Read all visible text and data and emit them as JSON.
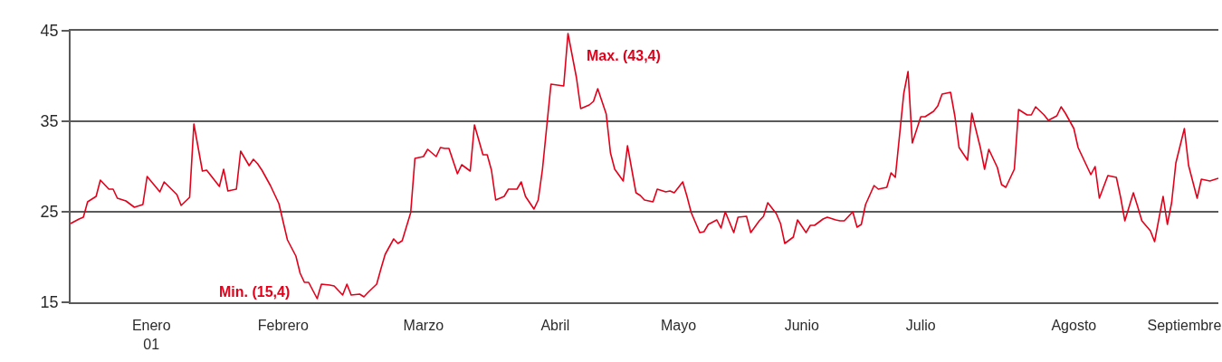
{
  "chart_data": {
    "type": "line",
    "x": [
      "2000-12-27",
      "2000-12-29",
      "2000-12-30",
      "2000-12-31",
      "2001-01-02",
      "2001-01-03",
      "2001-01-05",
      "2001-01-06",
      "2001-01-07",
      "2001-01-09",
      "2001-01-11",
      "2001-01-13",
      "2001-01-14",
      "2001-01-17",
      "2001-01-18",
      "2001-01-21",
      "2001-01-22",
      "2001-01-24",
      "2001-01-25",
      "2001-01-27",
      "2001-01-28",
      "2001-01-29",
      "2001-01-31",
      "2001-02-01",
      "2001-02-02",
      "2001-02-04",
      "2001-02-05",
      "2001-02-07",
      "2001-02-08",
      "2001-02-09",
      "2001-02-10",
      "2001-02-12",
      "2001-02-14",
      "2001-02-15",
      "2001-02-16",
      "2001-02-18",
      "2001-02-19",
      "2001-02-20",
      "2001-02-21",
      "2001-02-23",
      "2001-02-24",
      "2001-02-26",
      "2001-02-27",
      "2001-03-01",
      "2001-03-02",
      "2001-03-03",
      "2001-03-05",
      "2001-03-06",
      "2001-03-07",
      "2001-03-09",
      "2001-03-10",
      "2001-03-11",
      "2001-03-13",
      "2001-03-14",
      "2001-03-15",
      "2001-03-17",
      "2001-03-18",
      "2001-03-20",
      "2001-03-21",
      "2001-03-23",
      "2001-03-24",
      "2001-03-25",
      "2001-03-26",
      "2001-03-28",
      "2001-03-29",
      "2001-03-31",
      "2001-04-01",
      "2001-04-03",
      "2001-04-04",
      "2001-04-05",
      "2001-04-06",
      "2001-04-08",
      "2001-04-09",
      "2001-04-11",
      "2001-04-12",
      "2001-04-13",
      "2001-04-15",
      "2001-04-16",
      "2001-04-17",
      "2001-04-19",
      "2001-04-22",
      "2001-04-23",
      "2001-04-25",
      "2001-04-26",
      "2001-04-28",
      "2001-04-29",
      "2001-04-30",
      "2001-05-02",
      "2001-05-03",
      "2001-05-04",
      "2001-05-06",
      "2001-05-07",
      "2001-05-09",
      "2001-05-10",
      "2001-05-11",
      "2001-05-13",
      "2001-05-14",
      "2001-05-16",
      "2001-05-17",
      "2001-05-18",
      "2001-05-20",
      "2001-05-21",
      "2001-05-22",
      "2001-05-24",
      "2001-05-25",
      "2001-05-26",
      "2001-05-28",
      "2001-05-29",
      "2001-05-30",
      "2001-06-01",
      "2001-06-02",
      "2001-06-04",
      "2001-06-05",
      "2001-06-07",
      "2001-06-08",
      "2001-06-09",
      "2001-06-11",
      "2001-06-12",
      "2001-06-13",
      "2001-06-15",
      "2001-06-16",
      "2001-06-18",
      "2001-06-19",
      "2001-06-20",
      "2001-06-22",
      "2001-06-23",
      "2001-06-25",
      "2001-06-26",
      "2001-06-27",
      "2001-06-29",
      "2001-06-30",
      "2001-07-01",
      "2001-07-02",
      "2001-07-04",
      "2001-07-05",
      "2001-07-07",
      "2001-07-08",
      "2001-07-09",
      "2001-07-11",
      "2001-07-12",
      "2001-07-13",
      "2001-07-15",
      "2001-07-16",
      "2001-07-18",
      "2001-07-19",
      "2001-07-20",
      "2001-07-22",
      "2001-07-23",
      "2001-07-24",
      "2001-07-26",
      "2001-07-27",
      "2001-07-29",
      "2001-07-30",
      "2001-07-31",
      "2001-08-02",
      "2001-08-03",
      "2001-08-04",
      "2001-08-06",
      "2001-08-07",
      "2001-08-09",
      "2001-08-10",
      "2001-08-11",
      "2001-08-13",
      "2001-08-14",
      "2001-08-16",
      "2001-08-17",
      "2001-08-18",
      "2001-08-20",
      "2001-08-21",
      "2001-08-22",
      "2001-08-24",
      "2001-08-25",
      "2001-08-26",
      "2001-08-28",
      "2001-08-30",
      "2001-08-31",
      "2001-09-01",
      "2001-09-03",
      "2001-09-04",
      "2001-09-05",
      "2001-09-07",
      "2001-09-08",
      "2001-09-10",
      "2001-09-11",
      "2001-09-12",
      "2001-09-13",
      "2001-09-15",
      "2001-09-16",
      "2001-09-18",
      "2001-09-19",
      "2001-09-21",
      "2001-09-23"
    ],
    "series": [
      {
        "color": "#e2001a",
        "values": [
          23.7,
          24.2,
          24.4,
          26.1,
          26.7,
          28.5,
          27.5,
          27.5,
          26.5,
          26.2,
          25.5,
          25.8,
          28.9,
          27.2,
          28.3,
          26.9,
          25.7,
          26.6,
          34.7,
          29.5,
          29.6,
          29.0,
          27.8,
          29.7,
          27.3,
          27.5,
          31.7,
          30.1,
          30.8,
          30.3,
          29.6,
          27.9,
          25.9,
          23.9,
          21.9,
          20.1,
          18.2,
          17.2,
          17.2,
          15.4,
          17.0,
          16.9,
          16.8,
          15.8,
          17.0,
          15.8,
          15.9,
          15.6,
          16.1,
          17.0,
          18.7,
          20.3,
          22.0,
          21.5,
          21.8,
          24.9,
          30.9,
          31.1,
          31.9,
          31.1,
          32.1,
          32.0,
          32.0,
          29.2,
          30.2,
          29.5,
          34.6,
          31.3,
          31.3,
          29.6,
          26.3,
          26.7,
          27.5,
          27.5,
          28.3,
          26.7,
          25.3,
          26.3,
          29.7,
          39.1,
          38.9,
          44.7,
          39.8,
          36.4,
          36.8,
          37.2,
          38.6,
          35.8,
          31.5,
          29.7,
          28.4,
          32.3,
          27.1,
          26.8,
          26.3,
          26.1,
          27.5,
          27.2,
          27.3,
          27.1,
          28.3,
          26.7,
          24.9,
          22.7,
          22.8,
          23.6,
          24.1,
          23.2,
          25.0,
          22.7,
          24.4,
          24.5,
          22.7,
          24.0,
          24.5,
          26.0,
          24.8,
          23.7,
          21.5,
          22.2,
          24.1,
          22.7,
          23.5,
          23.5,
          24.2,
          24.4,
          24.1,
          24.0,
          24.0,
          25.0,
          23.3,
          23.6,
          25.8,
          27.9,
          27.5,
          27.7,
          29.3,
          28.8,
          38.1,
          40.5,
          32.6,
          35.5,
          35.5,
          36.1,
          36.7,
          38.0,
          38.2,
          35.6,
          32.1,
          30.7,
          35.9,
          32.1,
          29.7,
          31.9,
          29.9,
          28.0,
          27.7,
          29.7,
          36.3,
          35.7,
          35.7,
          36.6,
          35.7,
          35.1,
          35.6,
          36.6,
          35.9,
          34.2,
          32.1,
          31.1,
          29.1,
          30.0,
          26.5,
          29.0,
          28.8,
          26.6,
          24.0,
          27.1,
          25.6,
          24.0,
          22.9,
          21.7,
          26.7,
          23.6,
          26.0,
          30.4,
          34.2,
          30.1,
          26.5,
          28.6,
          28.4,
          28.7
        ]
      }
    ],
    "xlim": [
      "2000-12-27",
      "2001-09-23"
    ],
    "xticks": [
      {
        "value": "2001-01-15",
        "label": "Enero\n01"
      },
      {
        "value": "2001-02-15",
        "label": "Febrero"
      },
      {
        "value": "2001-03-20",
        "label": "Marzo"
      },
      {
        "value": "2001-04-20",
        "label": "Abril"
      },
      {
        "value": "2001-05-19",
        "label": "Mayo"
      },
      {
        "value": "2001-06-17",
        "label": "Junio"
      },
      {
        "value": "2001-07-15",
        "label": "Julio"
      },
      {
        "value": "2001-08-20",
        "label": "Agosto"
      },
      {
        "value": "2001-09-15",
        "label": "Septiembre"
      }
    ],
    "ylim": [
      15,
      45
    ],
    "yticks": [
      15,
      25,
      35,
      45
    ],
    "grid": "y",
    "annotations": [
      {
        "text": "Max. (43,4)",
        "x": "2001-04-23",
        "y": 44.7
      },
      {
        "text": "Min. (15,4)",
        "x": "2001-02-23",
        "y": 15.4
      }
    ]
  }
}
